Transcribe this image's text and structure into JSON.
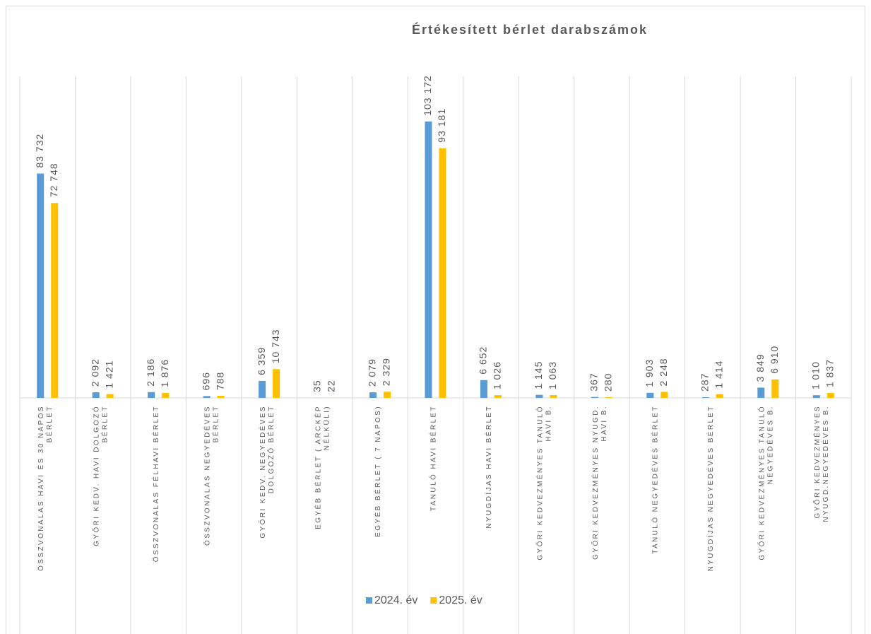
{
  "chart_data": {
    "type": "bar",
    "title": "Értékesített bérlet darabszámok",
    "categories": [
      "ÖSSZVONALAS HAVI ÉS 30 NAPOS BÉRLET",
      "GYŐRI KEDV. HAVI DOLGOZÓ BÉRLET",
      "ÖSSZVONALAS FÉLHAVI BÉRLET",
      "ÖSSZVONALAS NEGYEDÉVES BÉRLET",
      "GYŐRI KEDV. NEGYEDÉVES DOLGOZÓ BÉRLET",
      "EGYÉB BÉRLET ( ARCKÉP NÉLKÜLI)",
      "EGYÉB BÉRLET ( 7 NAPOS)",
      "TANULÓ HAVI BÉRLET",
      "NYUGDÍJAS HAVI BÉRLET",
      "GYŐRI KEDVEZMÉNYES TANULÓ HAVI B.",
      "GYŐRI KEDVEZMÉNYES NYUGD. HAVI B.",
      "TANULÓ NEGYEDÉVES BÉRLET",
      "NYUGDÍJAS NEGYEDÉVES BÉRLET",
      "GYŐRI KEDVEZMÉNYES TANULÓ NEGYEDÉVES B.",
      "GYŐRI KEDVEZMÉNYES NYUGD.NEGYEDÉVES B."
    ],
    "series": [
      {
        "name": "2024. év",
        "color": "#5b9bd5",
        "values": [
          83732,
          2092,
          2186,
          696,
          6359,
          35,
          2079,
          103172,
          6652,
          1145,
          367,
          1903,
          287,
          3849,
          1010
        ],
        "value_labels": [
          "83 732",
          "2 092",
          "2 186",
          "696",
          "6 359",
          "35",
          "2 079",
          "103 172",
          "6 652",
          "1 145",
          "367",
          "1 903",
          "287",
          "3 849",
          "1 010"
        ]
      },
      {
        "name": "2025. év",
        "color": "#ffc000",
        "values": [
          72748,
          1421,
          1876,
          788,
          10743,
          22,
          2329,
          93181,
          1026,
          1063,
          280,
          2248,
          1414,
          6910,
          1837
        ],
        "value_labels": [
          "72 748",
          "1 421",
          "1 876",
          "788",
          "10 743",
          "22",
          "2 329",
          "93 181",
          "1 026",
          "1 063",
          "280",
          "2 248",
          "1 414",
          "6 910",
          "1 837"
        ]
      }
    ],
    "ylim": [
      0,
      120000
    ]
  }
}
